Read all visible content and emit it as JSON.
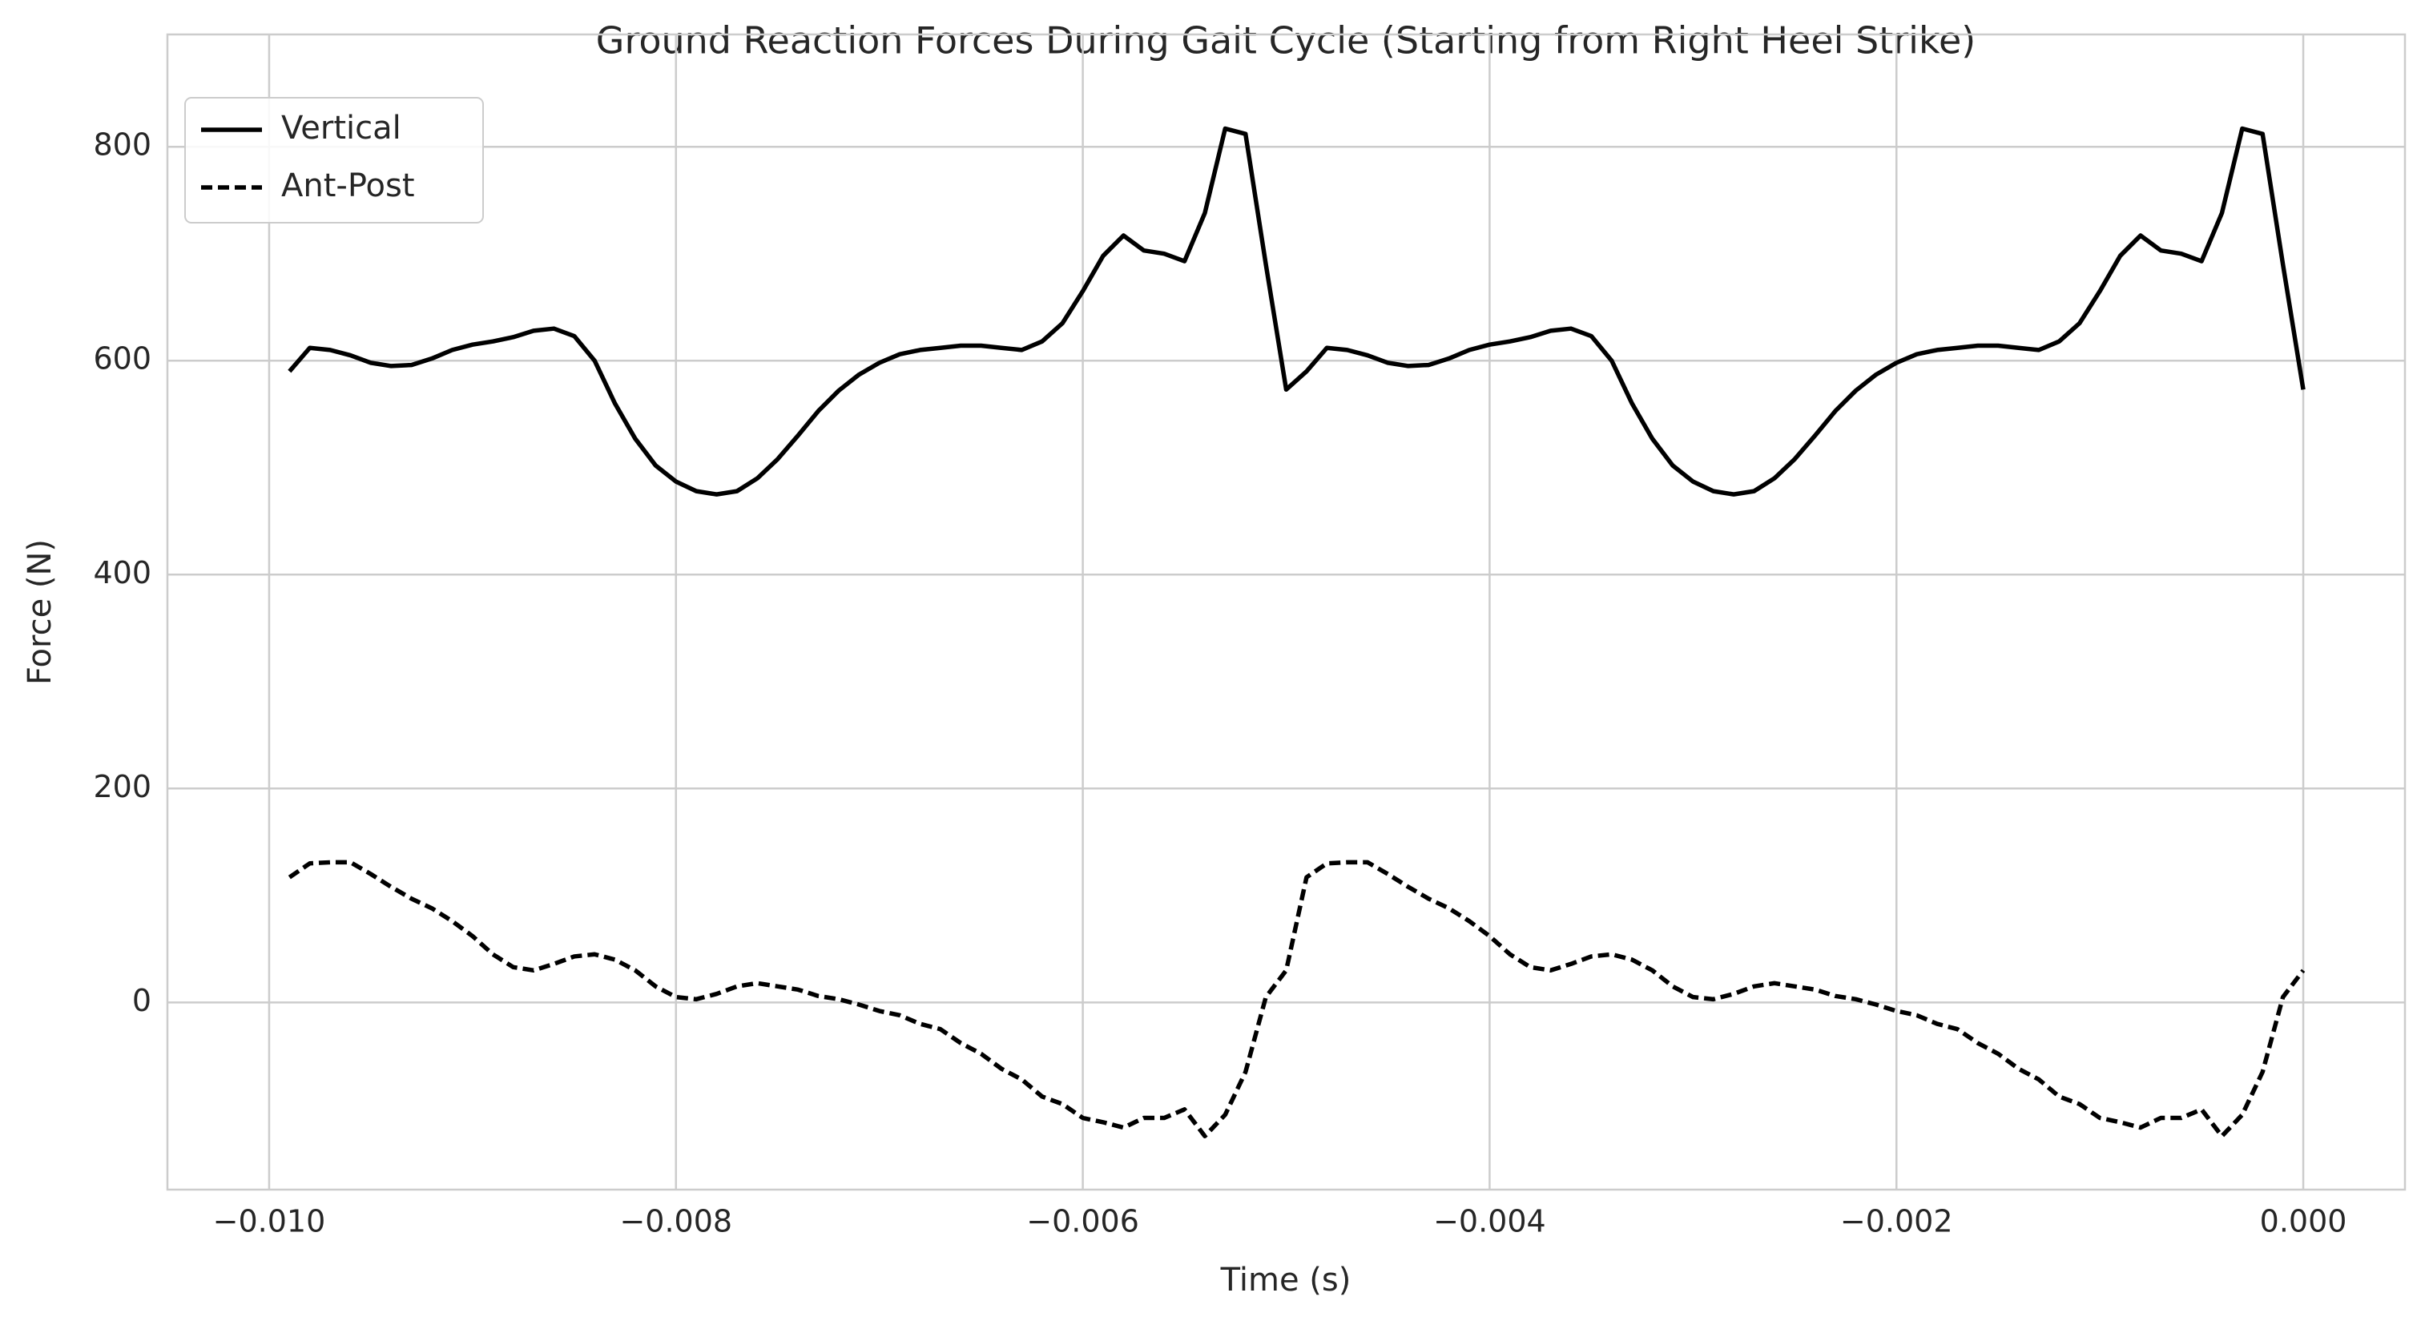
{
  "chart_data": {
    "type": "line",
    "title": "Ground Reaction Forces During Gait Cycle (Starting from Right Heel Strike)",
    "xlabel": "Time (s)",
    "ylabel": "Force (N)",
    "x": [
      -0.0099,
      -0.0098,
      -0.0097,
      -0.0096,
      -0.0095,
      -0.0094,
      -0.0093,
      -0.0092,
      -0.0091,
      -0.009,
      -0.0089,
      -0.0088,
      -0.0087,
      -0.0086,
      -0.0085,
      -0.0084,
      -0.0083,
      -0.0082,
      -0.0081,
      -0.008,
      -0.0079,
      -0.0078,
      -0.0077,
      -0.0076,
      -0.0075,
      -0.0074,
      -0.0073,
      -0.0072,
      -0.0071,
      -0.007,
      -0.0069,
      -0.0068,
      -0.0067,
      -0.0066,
      -0.0065,
      -0.0064,
      -0.0063,
      -0.0062,
      -0.0061,
      -0.006,
      -0.0059,
      -0.0058,
      -0.0057,
      -0.0056,
      -0.0055,
      -0.0054,
      -0.0053,
      -0.0052,
      -0.0051,
      -0.005,
      -0.0049,
      -0.0048,
      -0.0047,
      -0.0046,
      -0.0045,
      -0.0044,
      -0.0043,
      -0.0042,
      -0.0041,
      -0.004,
      -0.0039,
      -0.0038,
      -0.0037,
      -0.0036,
      -0.0035,
      -0.0034,
      -0.0033,
      -0.0032,
      -0.0031,
      -0.003,
      -0.0029,
      -0.0028,
      -0.0027,
      -0.0026,
      -0.0025,
      -0.0024,
      -0.0023,
      -0.0022,
      -0.0021,
      -0.002,
      -0.0019,
      -0.0018,
      -0.0017,
      -0.0016,
      -0.0015,
      -0.0014,
      -0.0013,
      -0.0012,
      -0.0011,
      -0.001,
      -0.0009,
      -0.0008,
      -0.0007,
      -0.0006,
      -0.0005,
      -0.0004,
      -0.0003,
      -0.0002,
      -0.0001,
      0
    ],
    "series": [
      {
        "name": "Vertical",
        "color": "#000000",
        "linestyle": "solid",
        "values": [
          590,
          612,
          610,
          605,
          598,
          595,
          596,
          602,
          610,
          615,
          618,
          622,
          628,
          630,
          623,
          600,
          560,
          527,
          502,
          487,
          478,
          475,
          478,
          490,
          508,
          530,
          553,
          572,
          587,
          598,
          606,
          610,
          612,
          614,
          614,
          612,
          610,
          618,
          635,
          665,
          698,
          717,
          703,
          700,
          693,
          738,
          817,
          812,
          690,
          573,
          590,
          612,
          610,
          605,
          598,
          595,
          596,
          602,
          610,
          615,
          618,
          622,
          628,
          630,
          623,
          600,
          560,
          527,
          502,
          487,
          478,
          475,
          478,
          490,
          508,
          530,
          553,
          572,
          587,
          598,
          606,
          610,
          612,
          614,
          614,
          612,
          610,
          618,
          635,
          665,
          698,
          717,
          703,
          700,
          693,
          738,
          817,
          812,
          690,
          573
        ]
      },
      {
        "name": "Ant-Post",
        "color": "#000000",
        "linestyle": "dashed",
        "values": [
          117,
          130,
          131,
          131,
          120,
          108,
          97,
          88,
          76,
          62,
          45,
          33,
          30,
          36,
          43,
          45,
          40,
          30,
          15,
          5,
          3,
          8,
          15,
          18,
          15,
          12,
          6,
          3,
          -2,
          -8,
          -12,
          -20,
          -25,
          -38,
          -48,
          -62,
          -72,
          -88,
          -95,
          -108,
          -112,
          -117,
          -108,
          -108,
          -100,
          -125,
          -105,
          -65,
          5,
          30,
          117,
          130,
          131,
          131,
          120,
          108,
          97,
          88,
          76,
          62,
          45,
          33,
          30,
          36,
          43,
          45,
          40,
          30,
          15,
          5,
          3,
          8,
          15,
          18,
          15,
          12,
          6,
          3,
          -2,
          -8,
          -12,
          -20,
          -25,
          -38,
          -48,
          -62,
          -72,
          -88,
          -95,
          -108,
          -112,
          -117,
          -108,
          -108,
          -100,
          -125,
          -105,
          -65,
          5,
          30
        ]
      }
    ],
    "xlim": [
      -0.0105,
      0.0005
    ],
    "xticks": [
      {
        "value": -0.01,
        "label": "−0.010"
      },
      {
        "value": -0.008,
        "label": "−0.008"
      },
      {
        "value": -0.006,
        "label": "−0.006"
      },
      {
        "value": -0.004,
        "label": "−0.004"
      },
      {
        "value": -0.002,
        "label": "−0.002"
      },
      {
        "value": 0,
        "label": "0.000"
      }
    ],
    "ylim": [
      -175,
      905
    ],
    "yticks": [
      0,
      200,
      400,
      600,
      800
    ],
    "grid": true,
    "legend": "upper left"
  }
}
